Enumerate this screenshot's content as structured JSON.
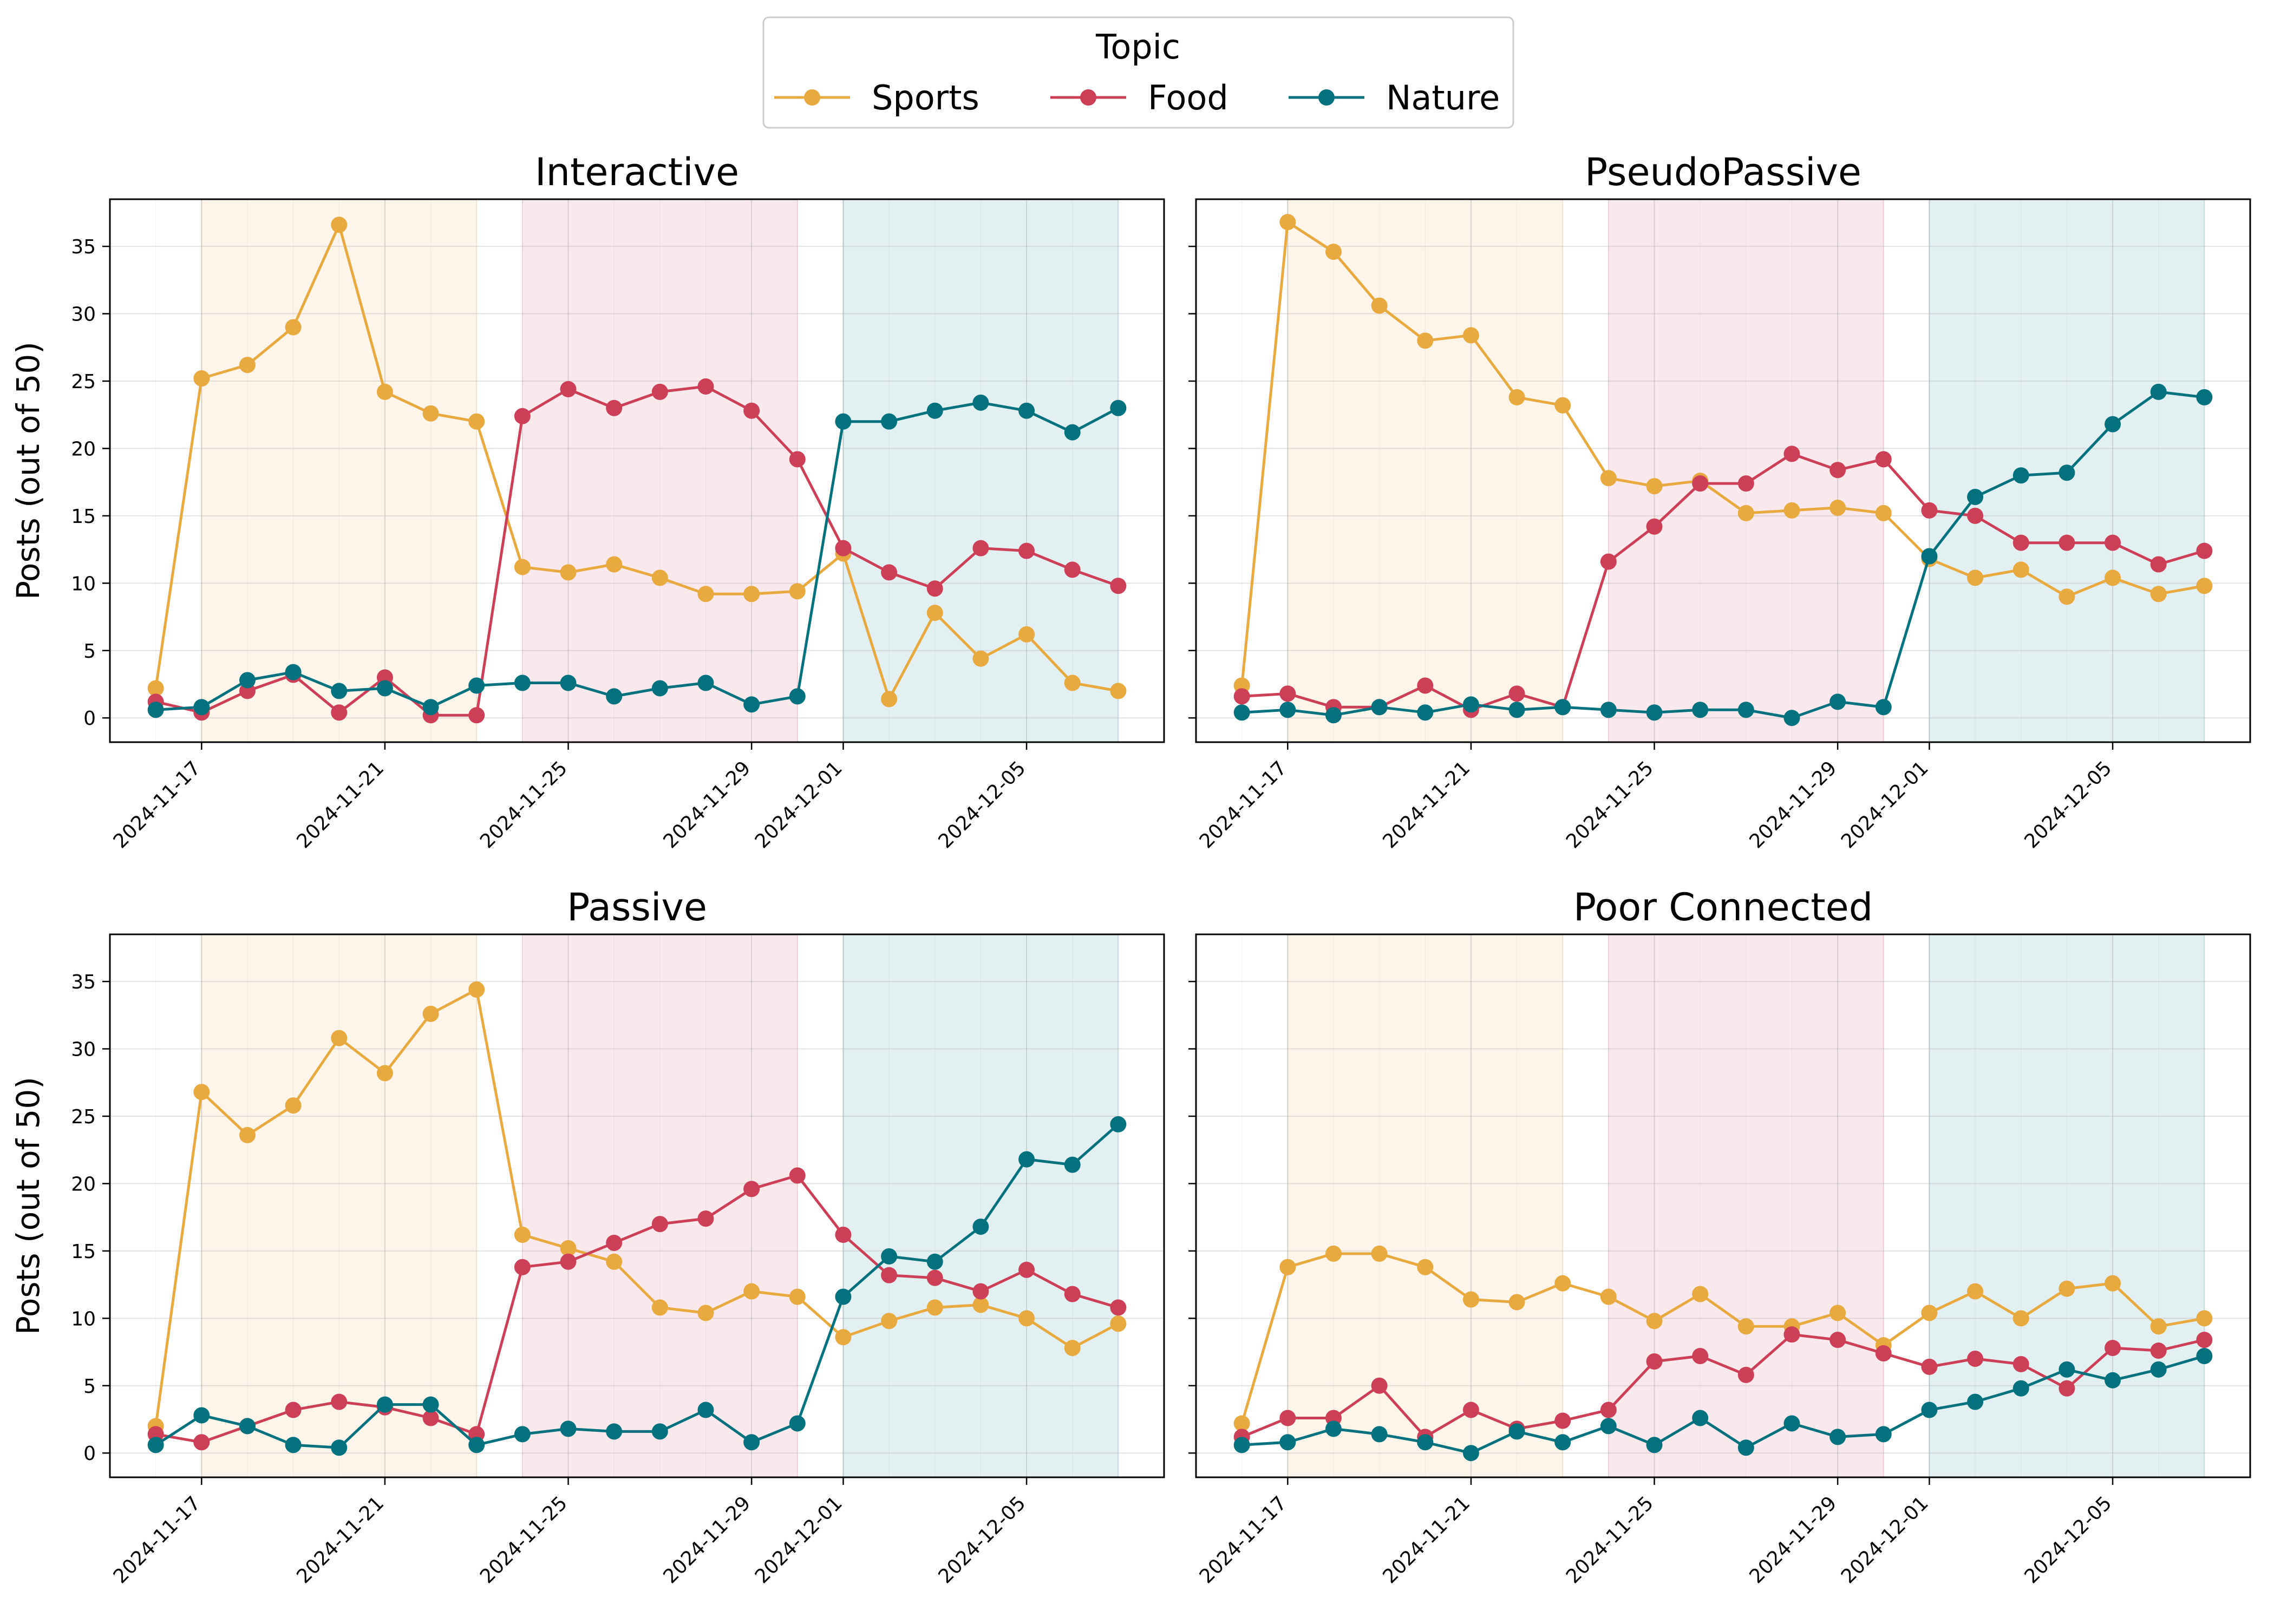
{
  "legend": {
    "title": "Topic",
    "items": [
      {
        "name": "Sports",
        "color": "#E8A93E"
      },
      {
        "name": "Food",
        "color": "#CC3F57"
      },
      {
        "name": "Nature",
        "color": "#04727E"
      }
    ]
  },
  "colors": {
    "sports": "#E8A93E",
    "food": "#CC3F57",
    "nature": "#04727E",
    "band_sports": "#FDF5EA",
    "band_food": "#FAE9EC",
    "band_nature": "#E3F0F1"
  },
  "chart_data": [
    {
      "type": "line",
      "title": "Interactive",
      "ylabel": "Posts (out of 50)",
      "x": [
        "2024-11-16",
        "2024-11-17",
        "2024-11-18",
        "2024-11-19",
        "2024-11-20",
        "2024-11-21",
        "2024-11-22",
        "2024-11-23",
        "2024-11-24",
        "2024-11-25",
        "2024-11-26",
        "2024-11-27",
        "2024-11-28",
        "2024-11-29",
        "2024-11-30",
        "2024-12-01",
        "2024-12-02",
        "2024-12-03",
        "2024-12-04",
        "2024-12-05",
        "2024-12-06",
        "2024-12-07"
      ],
      "series": [
        {
          "name": "Sports",
          "values": [
            2.2,
            25.2,
            26.2,
            29.0,
            36.6,
            24.2,
            22.6,
            22.0,
            11.2,
            10.8,
            11.4,
            10.4,
            9.2,
            9.2,
            9.4,
            12.2,
            1.4,
            7.8,
            4.4,
            6.2,
            2.6,
            2.0
          ]
        },
        {
          "name": "Food",
          "values": [
            1.2,
            0.4,
            2.0,
            3.2,
            0.4,
            3.0,
            0.2,
            0.2,
            22.4,
            24.4,
            23.0,
            24.2,
            24.6,
            22.8,
            19.2,
            12.6,
            10.8,
            9.6,
            12.6,
            12.4,
            11.0,
            9.8
          ]
        },
        {
          "name": "Nature",
          "values": [
            0.6,
            0.8,
            2.8,
            3.4,
            2.0,
            2.2,
            0.8,
            2.4,
            2.6,
            2.6,
            1.6,
            2.2,
            2.6,
            1.0,
            1.6,
            22.0,
            22.0,
            22.8,
            23.4,
            22.8,
            21.2,
            23.0
          ]
        }
      ]
    },
    {
      "type": "line",
      "title": "PseudoPassive",
      "ylabel": "",
      "x": [
        "2024-11-16",
        "2024-11-17",
        "2024-11-18",
        "2024-11-19",
        "2024-11-20",
        "2024-11-21",
        "2024-11-22",
        "2024-11-23",
        "2024-11-24",
        "2024-11-25",
        "2024-11-26",
        "2024-11-27",
        "2024-11-28",
        "2024-11-29",
        "2024-11-30",
        "2024-12-01",
        "2024-12-02",
        "2024-12-03",
        "2024-12-04",
        "2024-12-05",
        "2024-12-06",
        "2024-12-07"
      ],
      "series": [
        {
          "name": "Sports",
          "values": [
            2.4,
            36.8,
            34.6,
            30.6,
            28.0,
            28.4,
            23.8,
            23.2,
            17.8,
            17.2,
            17.6,
            15.2,
            15.4,
            15.6,
            15.2,
            11.8,
            10.4,
            11.0,
            9.0,
            10.4,
            9.2,
            9.8
          ]
        },
        {
          "name": "Food",
          "values": [
            1.6,
            1.8,
            0.8,
            0.8,
            2.4,
            0.6,
            1.8,
            0.8,
            11.6,
            14.2,
            17.4,
            17.4,
            19.6,
            18.4,
            19.2,
            15.4,
            15.0,
            13.0,
            13.0,
            13.0,
            11.4,
            12.4
          ]
        },
        {
          "name": "Nature",
          "values": [
            0.4,
            0.6,
            0.2,
            0.8,
            0.4,
            1.0,
            0.6,
            0.8,
            0.6,
            0.4,
            0.6,
            0.6,
            0.0,
            1.2,
            0.8,
            12.0,
            16.4,
            18.0,
            18.2,
            21.8,
            24.2,
            23.8
          ]
        }
      ]
    },
    {
      "type": "line",
      "title": "Passive",
      "ylabel": "Posts (out of 50)",
      "x": [
        "2024-11-16",
        "2024-11-17",
        "2024-11-18",
        "2024-11-19",
        "2024-11-20",
        "2024-11-21",
        "2024-11-22",
        "2024-11-23",
        "2024-11-24",
        "2024-11-25",
        "2024-11-26",
        "2024-11-27",
        "2024-11-28",
        "2024-11-29",
        "2024-11-30",
        "2024-12-01",
        "2024-12-02",
        "2024-12-03",
        "2024-12-04",
        "2024-12-05",
        "2024-12-06",
        "2024-12-07"
      ],
      "series": [
        {
          "name": "Sports",
          "values": [
            2.0,
            26.8,
            23.6,
            25.8,
            30.8,
            28.2,
            32.6,
            34.4,
            16.2,
            15.2,
            14.2,
            10.8,
            10.4,
            12.0,
            11.6,
            8.6,
            9.8,
            10.8,
            11.0,
            10.0,
            7.8,
            9.6
          ]
        },
        {
          "name": "Food",
          "values": [
            1.4,
            0.8,
            2.0,
            3.2,
            3.8,
            3.4,
            2.6,
            1.4,
            13.8,
            14.2,
            15.6,
            17.0,
            17.4,
            19.6,
            20.6,
            16.2,
            13.2,
            13.0,
            12.0,
            13.6,
            11.8,
            10.8
          ]
        },
        {
          "name": "Nature",
          "values": [
            0.6,
            2.8,
            2.0,
            0.6,
            0.4,
            3.6,
            3.6,
            0.6,
            1.4,
            1.8,
            1.6,
            1.6,
            3.2,
            0.8,
            2.2,
            11.6,
            14.6,
            14.2,
            16.8,
            21.8,
            21.4,
            24.4
          ]
        }
      ]
    },
    {
      "type": "line",
      "title": "Poor Connected",
      "ylabel": "",
      "x": [
        "2024-11-16",
        "2024-11-17",
        "2024-11-18",
        "2024-11-19",
        "2024-11-20",
        "2024-11-21",
        "2024-11-22",
        "2024-11-23",
        "2024-11-24",
        "2024-11-25",
        "2024-11-26",
        "2024-11-27",
        "2024-11-28",
        "2024-11-29",
        "2024-11-30",
        "2024-12-01",
        "2024-12-02",
        "2024-12-03",
        "2024-12-04",
        "2024-12-05",
        "2024-12-06",
        "2024-12-07"
      ],
      "series": [
        {
          "name": "Sports",
          "values": [
            2.2,
            13.8,
            14.8,
            14.8,
            13.8,
            11.4,
            11.2,
            12.6,
            11.6,
            9.8,
            11.8,
            9.4,
            9.4,
            10.4,
            8.0,
            10.4,
            12.0,
            10.0,
            12.2,
            12.6,
            9.4,
            10.0
          ]
        },
        {
          "name": "Food",
          "values": [
            1.2,
            2.6,
            2.6,
            5.0,
            1.2,
            3.2,
            1.8,
            2.4,
            3.2,
            6.8,
            7.2,
            5.8,
            8.8,
            8.4,
            7.4,
            6.4,
            7.0,
            6.6,
            4.8,
            7.8,
            7.6,
            8.4
          ]
        },
        {
          "name": "Nature",
          "values": [
            0.6,
            0.8,
            1.8,
            1.4,
            0.8,
            0.0,
            1.6,
            0.8,
            2.0,
            0.6,
            2.6,
            0.4,
            2.2,
            1.2,
            1.4,
            3.2,
            3.8,
            4.8,
            6.2,
            5.4,
            6.2,
            7.2
          ]
        }
      ]
    }
  ],
  "axes": {
    "ylim": [
      -1.8,
      38.5
    ],
    "yticks": [
      0,
      5,
      10,
      15,
      20,
      25,
      30,
      35
    ],
    "xlim": [
      "2024-11-15",
      "2024-12-08"
    ],
    "xticks": [
      "2024-11-17",
      "2024-11-21",
      "2024-11-25",
      "2024-11-29",
      "2024-12-01",
      "2024-12-05"
    ],
    "grid": true,
    "shaded_periods": [
      {
        "topic": "Sports",
        "start": "2024-11-17",
        "end": "2024-11-23"
      },
      {
        "topic": "Food",
        "start": "2024-11-24",
        "end": "2024-11-30"
      },
      {
        "topic": "Nature",
        "start": "2024-12-01",
        "end": "2024-12-07"
      }
    ],
    "legend_position": "top-center"
  }
}
